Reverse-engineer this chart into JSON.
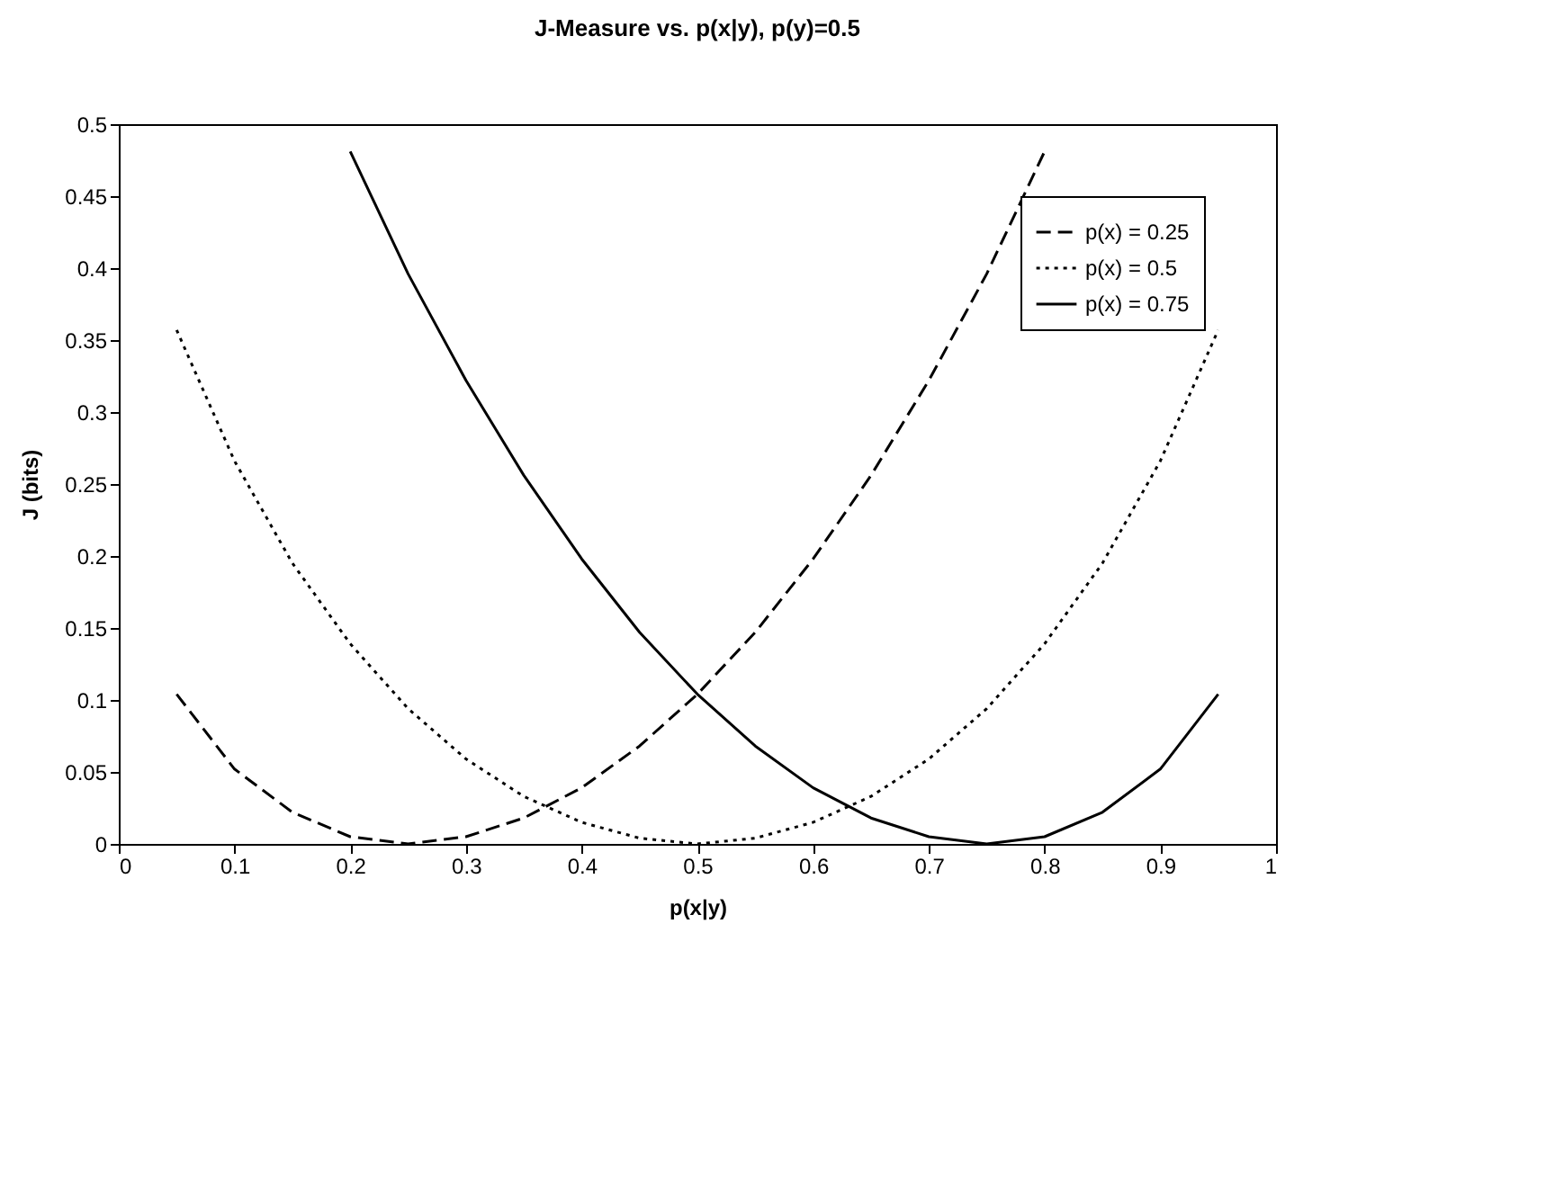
{
  "chart_data": {
    "type": "line",
    "title": "J-Measure vs. p(x|y), p(y)=0.5",
    "xlabel": "p(x|y)",
    "ylabel": "J (bits)",
    "xlim": [
      0,
      1
    ],
    "xticks": [
      0,
      0.1,
      0.2,
      0.3,
      0.4,
      0.5,
      0.6,
      0.7,
      0.8,
      0.9,
      1
    ],
    "ylim": [
      0,
      0.5
    ],
    "yticks": [
      0,
      0.05,
      0.1,
      0.15,
      0.2,
      0.25,
      0.3,
      0.35,
      0.4,
      0.45,
      0.5
    ],
    "grid": false,
    "legend": "top right",
    "marker": "none",
    "series": [
      {
        "name": "p(x) = 0.25",
        "color": "#000000",
        "line_style": "dashed",
        "x": [
          0.05,
          0.1,
          0.15,
          0.2,
          0.25,
          0.3,
          0.35,
          0.4,
          0.45,
          0.5,
          0.55,
          0.6,
          0.65,
          0.7,
          0.75,
          0.8
        ],
        "values": [
          0.104,
          0.052,
          0.022,
          0.005,
          0,
          0.005,
          0.018,
          0.039,
          0.068,
          0.104,
          0.147,
          0.198,
          0.256,
          0.322,
          0.396,
          0.481
        ]
      },
      {
        "name": "p(x) = 0.5",
        "color": "#000000",
        "line_style": "dotted",
        "x": [
          0.05,
          0.1,
          0.15,
          0.2,
          0.25,
          0.3,
          0.35,
          0.4,
          0.45,
          0.5,
          0.55,
          0.6,
          0.65,
          0.7,
          0.75,
          0.8,
          0.85,
          0.9,
          0.95
        ],
        "values": [
          0.357,
          0.266,
          0.195,
          0.139,
          0.094,
          0.059,
          0.033,
          0.015,
          0.004,
          0,
          0.004,
          0.015,
          0.033,
          0.059,
          0.094,
          0.139,
          0.195,
          0.266,
          0.357
        ]
      },
      {
        "name": "p(x) = 0.75",
        "color": "#000000",
        "line_style": "solid",
        "x": [
          0.2,
          0.25,
          0.3,
          0.35,
          0.4,
          0.45,
          0.5,
          0.55,
          0.6,
          0.65,
          0.7,
          0.75,
          0.8,
          0.85,
          0.9,
          0.95
        ],
        "values": [
          0.481,
          0.396,
          0.322,
          0.256,
          0.198,
          0.147,
          0.104,
          0.068,
          0.039,
          0.018,
          0.005,
          0,
          0.005,
          0.022,
          0.052,
          0.104
        ]
      }
    ]
  }
}
